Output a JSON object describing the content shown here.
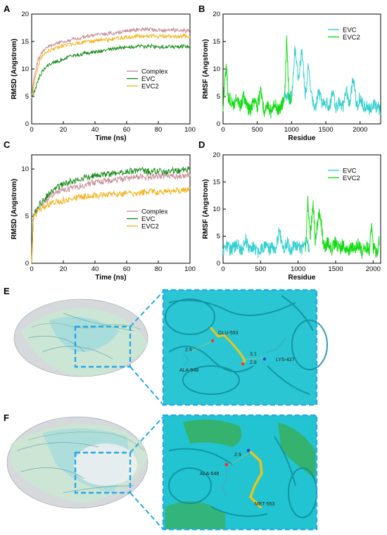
{
  "colors": {
    "complex": "#c8929c",
    "evc_rmsd": "#1a8c1a",
    "evc2_rmsd": "#f7b21b",
    "evc_rmsf": "#34d0d0",
    "evc2_rmsf": "#14dc14",
    "highlight_box": "#27a9e6",
    "protein_cyan": "#1cc4d2",
    "ligand_yellow": "#e8c619"
  },
  "panels": {
    "A": "A",
    "B": "B",
    "C": "C",
    "D": "D",
    "E": "E",
    "F": "F"
  },
  "chart_data": [
    {
      "id": "A",
      "type": "line",
      "xlabel": "Time (ns)",
      "ylabel": "RMSD (Angstrom)",
      "xlim": [
        0,
        100
      ],
      "ylim": [
        0,
        20
      ],
      "xticks": [
        "0",
        "20",
        "40",
        "60",
        "80",
        "100"
      ],
      "yticks": [
        "0",
        "5",
        "10",
        "15",
        "20"
      ],
      "legend_position": "center-right",
      "legend": [
        "Complex",
        "EVC",
        "EVC2"
      ],
      "series": [
        {
          "name": "Complex",
          "color": "#c8929c",
          "x": [
            0,
            2,
            4,
            6,
            8,
            10,
            15,
            20,
            25,
            30,
            35,
            40,
            45,
            50,
            55,
            60,
            65,
            70,
            75,
            80,
            85,
            90,
            95,
            100
          ],
          "y": [
            5,
            9,
            11.5,
            12.8,
            13.5,
            14,
            14.6,
            15,
            15.3,
            15.6,
            15.9,
            16.1,
            16.3,
            16.5,
            16.6,
            16.9,
            17.1,
            17.3,
            17.2,
            17.1,
            17,
            17.1,
            16.9,
            17
          ]
        },
        {
          "name": "EVC",
          "color": "#1a8c1a",
          "x": [
            0,
            2,
            4,
            6,
            8,
            10,
            15,
            20,
            25,
            30,
            35,
            40,
            45,
            50,
            55,
            60,
            65,
            70,
            75,
            80,
            85,
            90,
            95,
            100
          ],
          "y": [
            5,
            6,
            8,
            9.2,
            10,
            10.6,
            11.3,
            11.8,
            12.3,
            12.6,
            12.9,
            13.1,
            13.3,
            13.6,
            13.8,
            14,
            14.1,
            14.1,
            14.2,
            14,
            14.1,
            14,
            14.1,
            14
          ]
        },
        {
          "name": "EVC2",
          "color": "#f7b21b",
          "x": [
            0,
            2,
            4,
            6,
            8,
            10,
            15,
            20,
            25,
            30,
            35,
            40,
            45,
            50,
            55,
            60,
            65,
            70,
            75,
            80,
            85,
            90,
            95,
            100
          ],
          "y": [
            5,
            8,
            10.5,
            12,
            12.8,
            13.2,
            13.8,
            14.2,
            14.5,
            14.7,
            14.9,
            15.1,
            15.3,
            15.4,
            15.6,
            15.8,
            15.9,
            16,
            16,
            15.9,
            16,
            15.9,
            16,
            16
          ]
        }
      ]
    },
    {
      "id": "B",
      "type": "line",
      "xlabel": "Residue",
      "ylabel": "RMSF (Angstrom)",
      "xlim": [
        0,
        2300
      ],
      "ylim": [
        0,
        20
      ],
      "xticks": [
        "0",
        "500",
        "1000",
        "1500",
        "2000"
      ],
      "yticks": [
        "0",
        "5",
        "10",
        "15",
        "20"
      ],
      "legend_position": "top-right",
      "legend": [
        "EVC",
        "EVC2"
      ],
      "series": [
        {
          "name": "EVC",
          "color": "#34d0d0",
          "x": [
            900,
            950,
            1000,
            1050,
            1100,
            1150,
            1200,
            1250,
            1300,
            1350,
            1400,
            1450,
            1500,
            1550,
            1600,
            1650,
            1700,
            1750,
            1800,
            1850,
            1900,
            1950,
            2000,
            2050,
            2100,
            2150,
            2200,
            2250,
            2300
          ],
          "y": [
            6,
            4.5,
            5,
            13.5,
            8,
            14,
            5,
            11,
            4,
            3,
            6,
            3.5,
            4,
            3,
            5.5,
            3,
            4,
            3,
            6,
            3.5,
            9,
            3,
            5,
            3,
            3.5,
            2.5,
            4,
            3,
            2.5
          ]
        },
        {
          "name": "EVC2",
          "color": "#14dc14",
          "x": [
            0,
            25,
            50,
            75,
            100,
            150,
            200,
            250,
            300,
            350,
            400,
            450,
            500,
            550,
            600,
            650,
            700,
            750,
            800,
            850,
            900,
            930,
            960,
            1000
          ],
          "y": [
            3,
            8,
            10.5,
            5,
            4.5,
            3.5,
            4.5,
            3,
            5,
            3,
            2.5,
            4,
            3,
            6,
            2,
            3.5,
            2,
            4,
            2.5,
            3,
            5,
            15.8,
            5,
            4
          ]
        }
      ]
    },
    {
      "id": "C",
      "type": "line",
      "xlabel": "Time (ns)",
      "ylabel": "RMSD (Angstrom)",
      "xlim": [
        0,
        100
      ],
      "ylim": [
        0,
        11.5
      ],
      "xticks": [
        "0",
        "20",
        "40",
        "60",
        "80",
        "100"
      ],
      "yticks": [
        "0",
        "5",
        "10"
      ],
      "legend_position": "center-right",
      "legend": [
        "Complex",
        "EVC",
        "EVC2"
      ],
      "series": [
        {
          "name": "Complex",
          "color": "#c8929c",
          "x": [
            0,
            1,
            3,
            5,
            10,
            15,
            20,
            25,
            30,
            35,
            40,
            45,
            50,
            55,
            60,
            65,
            70,
            75,
            80,
            85,
            90,
            95,
            100
          ],
          "y": [
            0,
            5,
            5.6,
            6,
            6.8,
            7.4,
            7.8,
            8,
            8.2,
            8.4,
            8.6,
            8.7,
            8.8,
            8.9,
            9,
            9.1,
            9.2,
            9.1,
            9.2,
            9.3,
            9.2,
            9.3,
            9.4
          ]
        },
        {
          "name": "EVC",
          "color": "#1a8c1a",
          "x": [
            0,
            1,
            3,
            5,
            10,
            15,
            20,
            25,
            30,
            35,
            40,
            45,
            50,
            55,
            60,
            65,
            70,
            75,
            80,
            85,
            90,
            95,
            100
          ],
          "y": [
            0,
            5,
            5.7,
            6.3,
            7.2,
            7.9,
            8.4,
            8.7,
            8.9,
            9.1,
            9.3,
            9.4,
            9.5,
            9.6,
            9.7,
            9.8,
            9.9,
            9.7,
            9.8,
            9.7,
            9.8,
            9.9,
            10
          ]
        },
        {
          "name": "EVC2",
          "color": "#f7b21b",
          "x": [
            0,
            1,
            3,
            5,
            10,
            15,
            20,
            25,
            30,
            35,
            40,
            45,
            50,
            55,
            60,
            65,
            70,
            75,
            80,
            85,
            90,
            95,
            100
          ],
          "y": [
            0,
            4.8,
            5.3,
            5.7,
            6.2,
            6.5,
            6.7,
            6.9,
            7,
            7.1,
            7.2,
            7.2,
            7.3,
            7.3,
            7.4,
            7.4,
            7.5,
            7.6,
            7.5,
            7.6,
            7.7,
            7.7,
            7.8
          ]
        }
      ]
    },
    {
      "id": "D",
      "type": "line",
      "xlabel": "Residue",
      "ylabel": "RMSF (Angstrom)",
      "xlim": [
        0,
        2100
      ],
      "ylim": [
        0,
        20
      ],
      "xticks": [
        "0",
        "500",
        "1000",
        "1500",
        "2000"
      ],
      "yticks": [
        "0",
        "5",
        "10",
        "15",
        "20"
      ],
      "legend_position": "top-right",
      "legend": [
        "EVC",
        "EVC2"
      ],
      "series": [
        {
          "name": "EVC",
          "color": "#34d0d0",
          "x": [
            0,
            50,
            100,
            150,
            200,
            250,
            300,
            350,
            400,
            450,
            500,
            550,
            600,
            650,
            700,
            750,
            800,
            850,
            900,
            950,
            1000,
            1050,
            1100,
            1150
          ],
          "y": [
            2,
            3,
            2.5,
            3,
            3.5,
            2,
            4.5,
            2.5,
            3,
            2,
            2.5,
            3,
            2.5,
            3,
            2,
            6.5,
            2,
            4,
            2.5,
            3,
            3.5,
            2.5,
            4,
            3
          ]
        },
        {
          "name": "EVC2",
          "color": "#14dc14",
          "x": [
            1100,
            1130,
            1160,
            1200,
            1230,
            1270,
            1300,
            1330,
            1360,
            1400,
            1450,
            1500,
            1550,
            1600,
            1650,
            1700,
            1750,
            1800,
            1850,
            1900,
            1950,
            1980,
            2000,
            2050,
            2080
          ],
          "y": [
            3,
            12,
            5,
            11,
            4,
            9,
            8.8,
            4,
            3,
            4,
            2.5,
            4,
            2.5,
            3.5,
            2,
            3,
            2.5,
            3.5,
            2,
            3,
            2.5,
            6.8,
            3,
            2,
            4
          ]
        }
      ]
    }
  ],
  "molecular_panels": {
    "E": {
      "labels": [
        "GLU-553",
        "ALA-548",
        "LYS-427",
        "2.9",
        "3.1",
        "2.8"
      ]
    },
    "F": {
      "labels": [
        "ALA-548",
        "MET-553",
        "2.9"
      ]
    }
  }
}
